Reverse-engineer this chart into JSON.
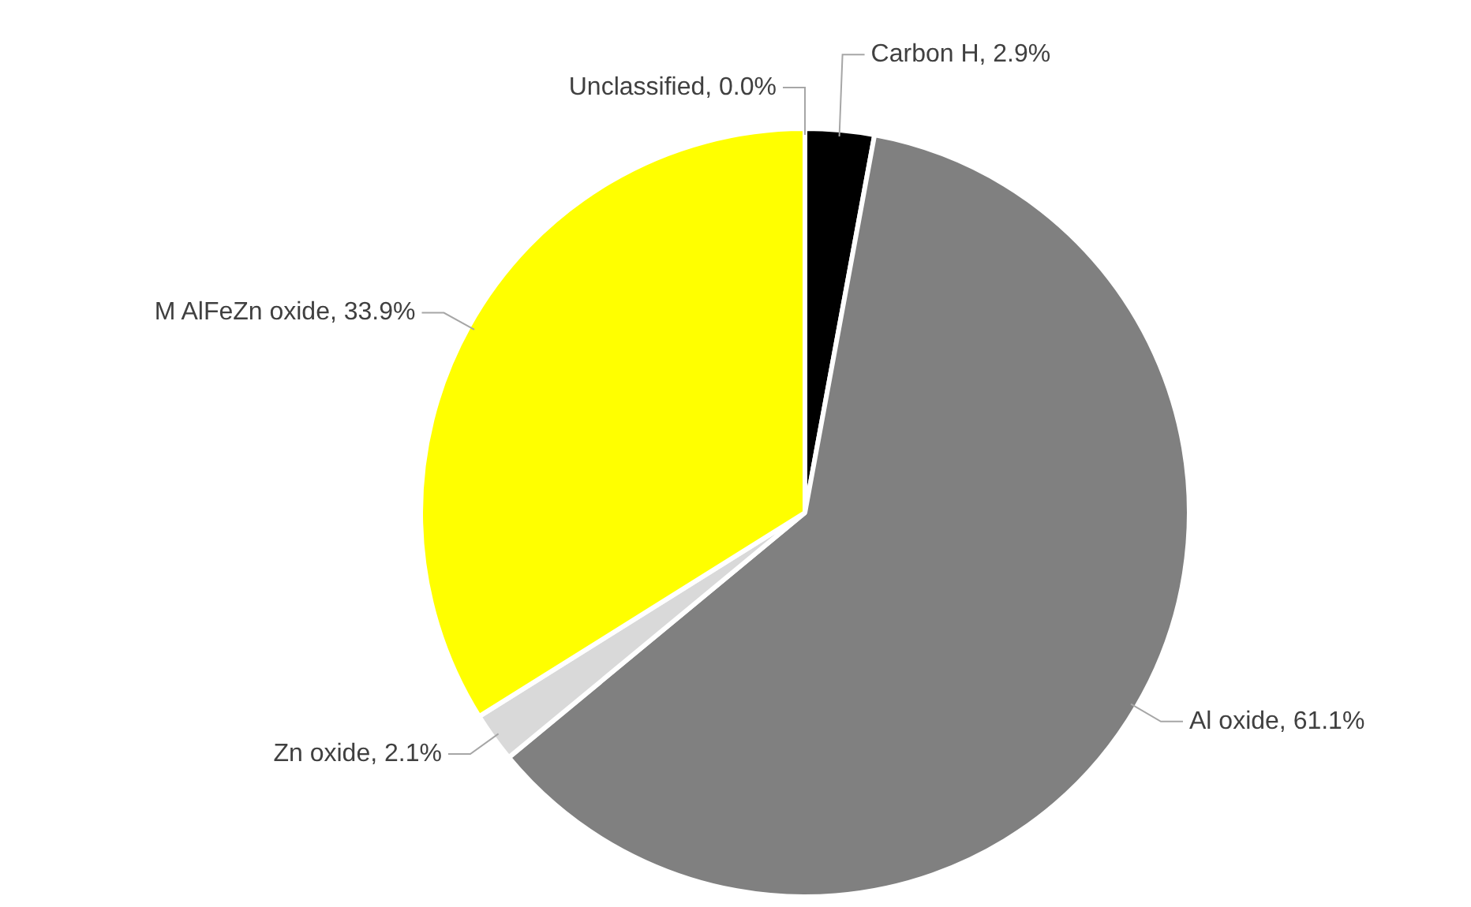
{
  "chart_data": {
    "type": "pie",
    "categories": [
      "Carbon H",
      "Al oxide",
      "Zn oxide",
      "M AlFeZn oxide",
      "Unclassified"
    ],
    "values": [
      2.9,
      61.1,
      2.1,
      33.9,
      0.0
    ],
    "colors": [
      "#000000",
      "#808080",
      "#d9d9d9",
      "#ffff00",
      "#4472c4"
    ],
    "value_labels": [
      ", 2.9%",
      ", 61.1%",
      ", 2.1%",
      ", 33.9%",
      ", 0.0%"
    ],
    "legend": false
  }
}
